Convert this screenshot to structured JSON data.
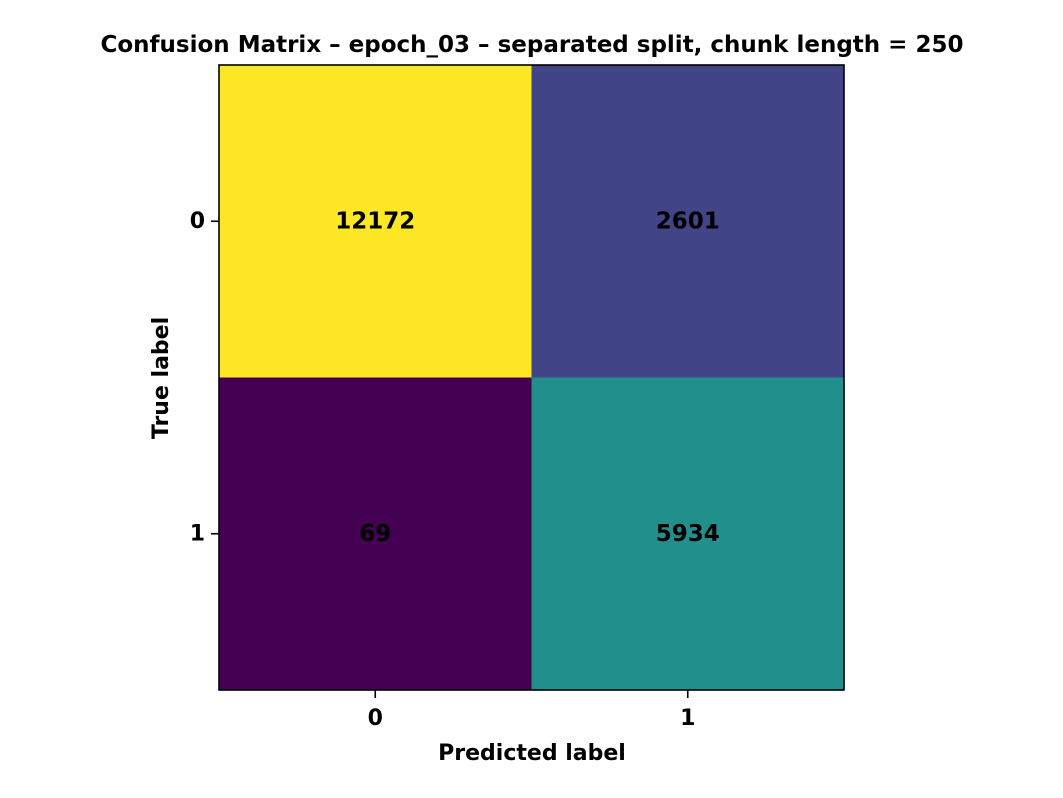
{
  "chart_data": {
    "type": "heatmap",
    "title": "Confusion Matrix – epoch_03 – separated split, chunk length = 250",
    "xlabel": "Predicted label",
    "ylabel": "True label",
    "x_categories": [
      "0",
      "1"
    ],
    "y_categories": [
      "0",
      "1"
    ],
    "matrix": [
      [
        12172,
        2601
      ],
      [
        69,
        5934
      ]
    ],
    "colormap": "viridis",
    "grid": false,
    "colors": {
      "cell_0_0": "#fde725",
      "cell_0_1": "#414487",
      "cell_1_0": "#440154",
      "cell_1_1": "#21908d",
      "text_on_light": "#000000",
      "text_on_dark": "#ffffff"
    }
  }
}
